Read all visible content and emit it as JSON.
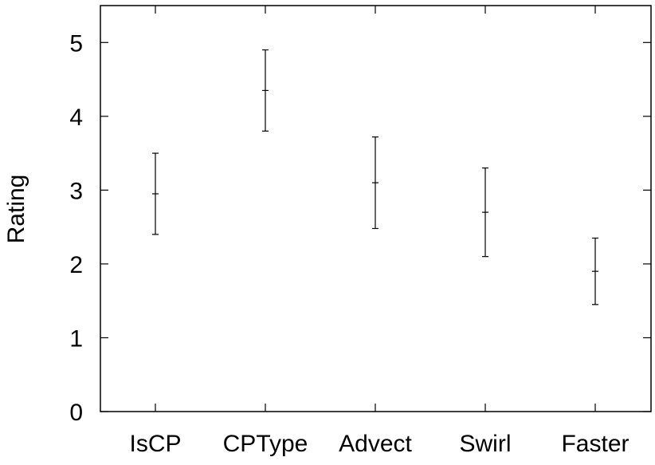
{
  "chart_data": {
    "type": "scatter",
    "categories": [
      "IsCP",
      "CPType",
      "Advect",
      "Swirl",
      "Faster"
    ],
    "mean": [
      2.95,
      4.35,
      3.1,
      2.7,
      1.9
    ],
    "lower": [
      2.4,
      3.8,
      2.48,
      2.1,
      1.45
    ],
    "upper": [
      3.5,
      4.9,
      3.72,
      3.3,
      2.35
    ],
    "ylabel": "Rating",
    "xlabel": "",
    "title": "",
    "ylim": [
      0,
      5.5
    ],
    "yticks": [
      "0",
      "1",
      "2",
      "3",
      "4",
      "5"
    ],
    "grid": false,
    "legend": "none",
    "colors": {
      "line": "#000000",
      "background": "#ffffff"
    }
  }
}
